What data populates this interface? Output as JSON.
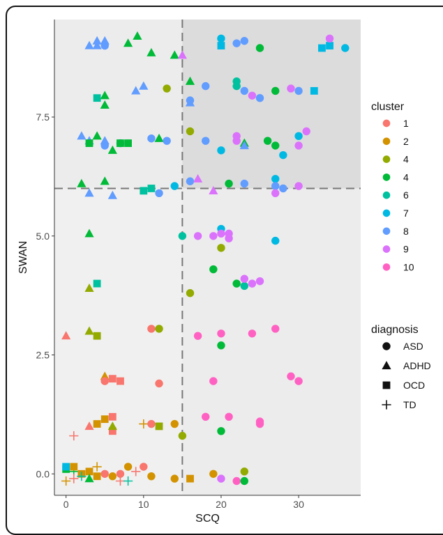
{
  "chart_data": {
    "type": "scatter",
    "xlabel": "SCQ",
    "ylabel": "SWAN",
    "xlim": [
      -1.5,
      38
    ],
    "ylim": [
      -0.45,
      9.55
    ],
    "x_ticks": [
      0,
      10,
      20,
      30
    ],
    "y_ticks": [
      0.0,
      2.5,
      5.0,
      7.5
    ],
    "x_tick_labels": [
      "0",
      "10",
      "20",
      "30"
    ],
    "y_tick_labels": [
      "0.0",
      "2.5",
      "5.0",
      "7.5"
    ],
    "cutoff_x": 15,
    "cutoff_y": 6,
    "grid": false,
    "legend_placement": "right",
    "legend_cluster": {
      "title": "cluster",
      "entries": [
        {
          "label": "1",
          "color": "#F8766D"
        },
        {
          "label": "2",
          "color": "#D39200"
        },
        {
          "label": "4",
          "color": "#93AA00"
        },
        {
          "label": "4",
          "color": "#00BA38"
        },
        {
          "label": "6",
          "color": "#00C19F"
        },
        {
          "label": "7",
          "color": "#00B9E3"
        },
        {
          "label": "8",
          "color": "#619CFF"
        },
        {
          "label": "9",
          "color": "#DB72FB"
        },
        {
          "label": "10",
          "color": "#FF61C3"
        }
      ]
    },
    "legend_diagnosis": {
      "title": "diagnosis",
      "entries": [
        {
          "label": "ASD",
          "shape": "circle"
        },
        {
          "label": "ADHD",
          "shape": "triangle"
        },
        {
          "label": "OCD",
          "shape": "square"
        },
        {
          "label": "TD",
          "shape": "plus"
        }
      ]
    },
    "points": [
      [
        3,
        9,
        6,
        "triangle"
      ],
      [
        4,
        9,
        6,
        "triangle"
      ],
      [
        4,
        9.1,
        6,
        "triangle"
      ],
      [
        5,
        9.1,
        6,
        "triangle"
      ],
      [
        5,
        9,
        6,
        "circle"
      ],
      [
        8,
        9.05,
        3,
        "triangle"
      ],
      [
        9.2,
        9.2,
        3,
        "triangle"
      ],
      [
        11,
        8.85,
        3,
        "triangle"
      ],
      [
        14,
        8.8,
        3,
        "triangle"
      ],
      [
        15,
        8.8,
        7,
        "triangle"
      ],
      [
        20,
        9.15,
        5,
        "circle"
      ],
      [
        20,
        9,
        5,
        "square"
      ],
      [
        22,
        9.05,
        6,
        "circle"
      ],
      [
        23,
        9.1,
        6,
        "circle"
      ],
      [
        25,
        8.95,
        3,
        "circle"
      ],
      [
        33,
        8.95,
        5,
        "square"
      ],
      [
        34,
        9,
        5,
        "square"
      ],
      [
        34,
        9.15,
        7,
        "circle"
      ],
      [
        36,
        8.95,
        5,
        "circle"
      ],
      [
        4,
        7.9,
        4,
        "square"
      ],
      [
        5,
        7.95,
        3,
        "triangle"
      ],
      [
        5,
        7.75,
        3,
        "triangle"
      ],
      [
        9,
        8.05,
        6,
        "triangle"
      ],
      [
        10,
        8.15,
        6,
        "triangle"
      ],
      [
        13,
        8.1,
        2,
        "circle"
      ],
      [
        16,
        8.25,
        3,
        "triangle"
      ],
      [
        16,
        7.8,
        6,
        "triangle"
      ],
      [
        16,
        7.85,
        6,
        "circle"
      ],
      [
        18,
        8.15,
        6,
        "circle"
      ],
      [
        22,
        8.25,
        4,
        "circle"
      ],
      [
        22,
        8.15,
        4,
        "circle"
      ],
      [
        23,
        8.05,
        6,
        "circle"
      ],
      [
        24,
        7.95,
        7,
        "circle"
      ],
      [
        25,
        7.9,
        6,
        "circle"
      ],
      [
        27,
        8.05,
        3,
        "circle"
      ],
      [
        29,
        8.1,
        7,
        "circle"
      ],
      [
        30,
        8.05,
        6,
        "circle"
      ],
      [
        32,
        8.05,
        5,
        "square"
      ],
      [
        2,
        7.1,
        6,
        "triangle"
      ],
      [
        3,
        7,
        6,
        "triangle"
      ],
      [
        3,
        6.95,
        3,
        "square"
      ],
      [
        4,
        7.1,
        3,
        "triangle"
      ],
      [
        5,
        7,
        6,
        "triangle"
      ],
      [
        5,
        6.9,
        6,
        "circle"
      ],
      [
        6,
        6.8,
        3,
        "triangle"
      ],
      [
        7,
        6.95,
        6,
        "circle"
      ],
      [
        7,
        6.95,
        3,
        "square"
      ],
      [
        8,
        6.95,
        3,
        "square"
      ],
      [
        11,
        7.05,
        6,
        "circle"
      ],
      [
        12,
        7.05,
        3,
        "triangle"
      ],
      [
        13,
        7,
        6,
        "circle"
      ],
      [
        16,
        7.2,
        2,
        "circle"
      ],
      [
        18,
        7,
        6,
        "circle"
      ],
      [
        20,
        6.8,
        5,
        "circle"
      ],
      [
        22,
        7.1,
        7,
        "circle"
      ],
      [
        22,
        7,
        7,
        "circle"
      ],
      [
        23,
        6.95,
        3,
        "triangle"
      ],
      [
        23,
        6.9,
        6,
        "triangle"
      ],
      [
        26,
        7,
        3,
        "circle"
      ],
      [
        27,
        6.9,
        3,
        "circle"
      ],
      [
        28,
        6.7,
        5,
        "circle"
      ],
      [
        30,
        6.9,
        7,
        "circle"
      ],
      [
        30,
        7.1,
        5,
        "circle"
      ],
      [
        31,
        7.2,
        7,
        "circle"
      ],
      [
        2,
        6.1,
        3,
        "triangle"
      ],
      [
        3,
        5.9,
        6,
        "triangle"
      ],
      [
        5,
        6.15,
        3,
        "triangle"
      ],
      [
        6,
        5.85,
        6,
        "triangle"
      ],
      [
        10,
        5.95,
        4,
        "square"
      ],
      [
        11,
        6,
        4,
        "square"
      ],
      [
        12,
        5.9,
        6,
        "circle"
      ],
      [
        14,
        6.05,
        5,
        "circle"
      ],
      [
        16,
        6.15,
        6,
        "circle"
      ],
      [
        17,
        6.2,
        7,
        "triangle"
      ],
      [
        19,
        5.95,
        7,
        "triangle"
      ],
      [
        21,
        6.1,
        3,
        "circle"
      ],
      [
        23,
        6.1,
        6,
        "circle"
      ],
      [
        27,
        6.2,
        5,
        "circle"
      ],
      [
        27,
        6.05,
        6,
        "circle"
      ],
      [
        28,
        6,
        6,
        "circle"
      ],
      [
        30,
        6.05,
        7,
        "circle"
      ],
      [
        27,
        5.9,
        7,
        "circle"
      ],
      [
        3,
        5.05,
        3,
        "triangle"
      ],
      [
        15,
        5,
        4,
        "circle"
      ],
      [
        17,
        5,
        7,
        "circle"
      ],
      [
        19,
        5,
        7,
        "circle"
      ],
      [
        20,
        5.15,
        5,
        "circle"
      ],
      [
        20,
        5.05,
        7,
        "circle"
      ],
      [
        21,
        5.05,
        7,
        "circle"
      ],
      [
        20,
        4.75,
        2,
        "circle"
      ],
      [
        21,
        4.95,
        7,
        "circle"
      ],
      [
        27,
        4.9,
        5,
        "circle"
      ],
      [
        3,
        3.9,
        2,
        "triangle"
      ],
      [
        4,
        4,
        4,
        "square"
      ],
      [
        16,
        3.8,
        2,
        "circle"
      ],
      [
        19,
        4.3,
        3,
        "circle"
      ],
      [
        22,
        4,
        3,
        "circle"
      ],
      [
        23,
        3.95,
        4,
        "circle"
      ],
      [
        23,
        4.1,
        7,
        "circle"
      ],
      [
        24,
        4,
        7,
        "circle"
      ],
      [
        25,
        4.05,
        7,
        "circle"
      ],
      [
        0,
        2.9,
        0,
        "triangle"
      ],
      [
        3,
        3,
        2,
        "triangle"
      ],
      [
        4,
        2.9,
        2,
        "square"
      ],
      [
        11,
        3.05,
        0,
        "circle"
      ],
      [
        12,
        3.05,
        2,
        "circle"
      ],
      [
        17,
        2.9,
        8,
        "circle"
      ],
      [
        20,
        2.95,
        8,
        "circle"
      ],
      [
        24,
        2.95,
        8,
        "circle"
      ],
      [
        27,
        3.05,
        8,
        "circle"
      ],
      [
        20,
        2.7,
        3,
        "circle"
      ],
      [
        5,
        2.05,
        1,
        "triangle"
      ],
      [
        5,
        1.95,
        0,
        "circle"
      ],
      [
        6,
        2,
        0,
        "square"
      ],
      [
        7,
        1.95,
        0,
        "square"
      ],
      [
        12,
        1.9,
        0,
        "circle"
      ],
      [
        19,
        1.95,
        8,
        "circle"
      ],
      [
        29,
        2.05,
        8,
        "circle"
      ],
      [
        30,
        1.95,
        8,
        "circle"
      ],
      [
        3,
        1,
        0,
        "triangle"
      ],
      [
        1,
        0.8,
        0,
        "plus"
      ],
      [
        4,
        1.05,
        1,
        "square"
      ],
      [
        5,
        1.15,
        1,
        "square"
      ],
      [
        6,
        1.2,
        0,
        "square"
      ],
      [
        6,
        0.9,
        0,
        "square"
      ],
      [
        6,
        1,
        2,
        "triangle"
      ],
      [
        10,
        1.05,
        1,
        "plus"
      ],
      [
        11,
        1.05,
        0,
        "circle"
      ],
      [
        12,
        1,
        2,
        "square"
      ],
      [
        14,
        1.05,
        1,
        "circle"
      ],
      [
        15,
        0.8,
        2,
        "circle"
      ],
      [
        18,
        1.2,
        8,
        "circle"
      ],
      [
        20,
        0.9,
        3,
        "circle"
      ],
      [
        21,
        1.2,
        8,
        "circle"
      ],
      [
        25,
        1.05,
        8,
        "circle"
      ],
      [
        25,
        1.1,
        8,
        "circle"
      ],
      [
        0,
        0.1,
        3,
        "square"
      ],
      [
        0,
        0.15,
        5,
        "square"
      ],
      [
        1,
        0.05,
        3,
        "plus"
      ],
      [
        1,
        0.15,
        1,
        "square"
      ],
      [
        2,
        0,
        1,
        "square"
      ],
      [
        3,
        0.05,
        1,
        "square"
      ],
      [
        3,
        -0.1,
        3,
        "triangle"
      ],
      [
        4,
        -0.05,
        1,
        "square"
      ],
      [
        5,
        0,
        0,
        "circle"
      ],
      [
        0,
        -0.15,
        1,
        "plus"
      ],
      [
        1,
        -0.1,
        0,
        "plus"
      ],
      [
        2,
        -0.05,
        4,
        "plus"
      ],
      [
        4,
        0.15,
        1,
        "plus"
      ],
      [
        6,
        -0.05,
        1,
        "circle"
      ],
      [
        7,
        0,
        0,
        "circle"
      ],
      [
        7,
        -0.15,
        0,
        "plus"
      ],
      [
        8,
        -0.15,
        4,
        "plus"
      ],
      [
        8,
        0.15,
        1,
        "circle"
      ],
      [
        10,
        0.15,
        0,
        "circle"
      ],
      [
        11,
        -0.05,
        1,
        "circle"
      ],
      [
        14,
        -0.1,
        1,
        "circle"
      ],
      [
        16,
        -0.1,
        1,
        "square"
      ],
      [
        19,
        0,
        1,
        "circle"
      ],
      [
        20,
        -0.1,
        7,
        "circle"
      ],
      [
        22,
        -0.15,
        8,
        "circle"
      ],
      [
        23,
        0.05,
        2,
        "circle"
      ],
      [
        23,
        -0.15,
        3,
        "circle"
      ],
      [
        9,
        0.05,
        0,
        "plus"
      ]
    ]
  }
}
